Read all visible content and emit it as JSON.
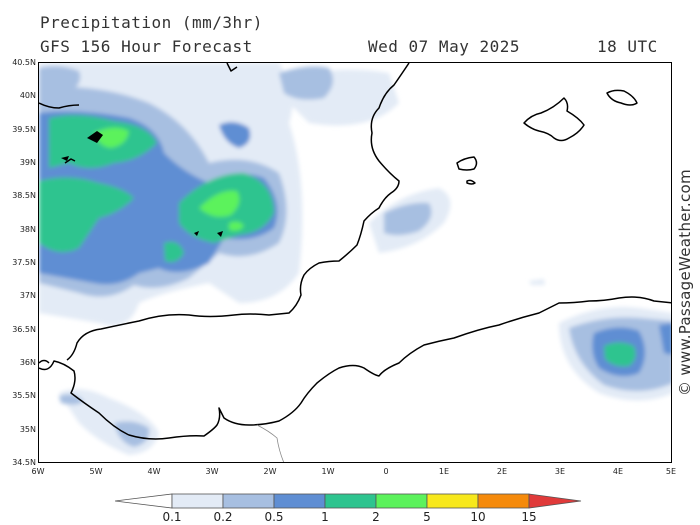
{
  "header": {
    "title": "Precipitation (mm/3hr)",
    "subtitle": "GFS 156 Hour Forecast",
    "valid_date": "Wed 07 May 2025",
    "valid_time": "18 UTC"
  },
  "axes": {
    "lat_labels": [
      "40.5N",
      "40N",
      "39.5N",
      "39N",
      "38.5N",
      "38N",
      "37.5N",
      "37N",
      "36.5N",
      "36N",
      "35.5N",
      "35N",
      "34.5N"
    ],
    "lon_labels": [
      "6W",
      "5W",
      "4W",
      "3W",
      "2W",
      "1W",
      "0",
      "1E",
      "2E",
      "3E",
      "4E",
      "5E"
    ]
  },
  "watermark": "© www.PassageWeather.com",
  "legend": {
    "labels": [
      "0.1",
      "0.2",
      "0.5",
      "1",
      "2",
      "5",
      "10",
      "15"
    ],
    "colors": [
      "#ffffff",
      "#e3ebf6",
      "#a7bfe1",
      "#5f8ed3",
      "#2ec48f",
      "#5cf25c",
      "#f7e81c",
      "#f58a0b",
      "#e03a3a"
    ]
  },
  "map": {
    "region": "Western Mediterranean / Alboran Sea",
    "lat_range": [
      34.5,
      40.5
    ],
    "lon_range": [
      -6,
      5
    ]
  }
}
